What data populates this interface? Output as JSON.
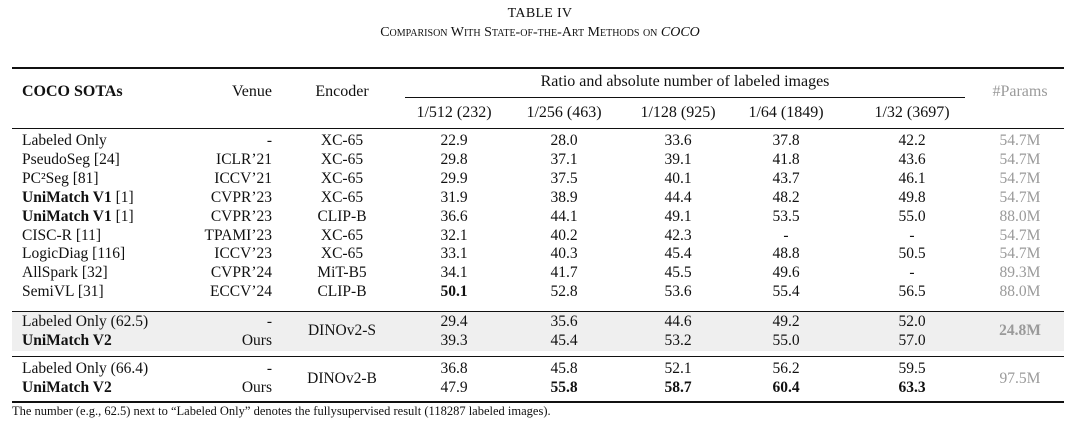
{
  "caption": {
    "title": "TABLE IV",
    "subtitle": "Comparison With State-of-the-Art Methods on",
    "subtitle_dataset": "COCO"
  },
  "header": {
    "method": "COCO SOTAs",
    "venue": "Venue",
    "encoder": "Encoder",
    "group": "Ratio and absolute number of labeled images",
    "params": "#Params",
    "splits": [
      "1/512 (232)",
      "1/256 (463)",
      "1/128 (925)",
      "1/64 (1849)",
      "1/32 (3697)"
    ]
  },
  "section1": [
    {
      "name": "Labeled Only",
      "ref": "",
      "venue": "-",
      "encoder": "XC-65",
      "vals": [
        "22.9",
        "28.0",
        "33.6",
        "37.8",
        "42.2"
      ],
      "params": "54.7M"
    },
    {
      "name": "PseudoSeg",
      "ref": "[24]",
      "venue": "ICLR’21",
      "encoder": "XC-65",
      "vals": [
        "29.8",
        "37.1",
        "39.1",
        "41.8",
        "43.6"
      ],
      "params": "54.7M"
    },
    {
      "name": "PC²Seg",
      "ref": "[81]",
      "venue": "ICCV’21",
      "encoder": "XC-65",
      "vals": [
        "29.9",
        "37.5",
        "40.1",
        "43.7",
        "46.1"
      ],
      "params": "54.7M"
    },
    {
      "name": "UniMatch V1",
      "ref": "[1]",
      "venue": "CVPR’23",
      "encoder": "XC-65",
      "vals": [
        "31.9",
        "38.9",
        "44.4",
        "48.2",
        "49.8"
      ],
      "params": "54.7M"
    },
    {
      "name": "UniMatch V1",
      "ref": "[1]",
      "venue": "CVPR’23",
      "encoder": "CLIP-B",
      "vals": [
        "36.6",
        "44.1",
        "49.1",
        "53.5",
        "55.0"
      ],
      "params": "88.0M"
    },
    {
      "name": "CISC-R",
      "ref": "[11]",
      "venue": "TPAMI’23",
      "encoder": "XC-65",
      "vals": [
        "32.1",
        "40.2",
        "42.3",
        "-",
        "-"
      ],
      "params": "54.7M"
    },
    {
      "name": "LogicDiag",
      "ref": "[116]",
      "venue": "ICCV’23",
      "encoder": "XC-65",
      "vals": [
        "33.1",
        "40.3",
        "45.4",
        "48.8",
        "50.5"
      ],
      "params": "54.7M"
    },
    {
      "name": "AllSpark",
      "ref": "[32]",
      "venue": "CVPR’24",
      "encoder": "MiT-B5",
      "vals": [
        "34.1",
        "41.7",
        "45.5",
        "49.6",
        "-"
      ],
      "params": "89.3M"
    },
    {
      "name": "SemiVL",
      "ref": "[31]",
      "venue": "ECCV’24",
      "encoder": "CLIP-B",
      "vals": [
        "50.1",
        "52.8",
        "53.6",
        "55.4",
        "56.5"
      ],
      "params": "88.0M"
    }
  ],
  "section2": {
    "encoder": "DINOv2-S",
    "params": "24.8M",
    "rows": [
      {
        "name": "Labeled Only (62.5)",
        "venue": "-",
        "vals": [
          "29.4",
          "35.6",
          "44.6",
          "49.2",
          "52.0"
        ]
      },
      {
        "name": "UniMatch V2",
        "venue": "Ours",
        "vals": [
          "39.3",
          "45.4",
          "53.2",
          "55.0",
          "57.0"
        ]
      }
    ]
  },
  "section3": {
    "encoder": "DINOv2-B",
    "params": "97.5M",
    "rows": [
      {
        "name": "Labeled Only (66.4)",
        "venue": "-",
        "vals": [
          "36.8",
          "45.8",
          "52.1",
          "56.2",
          "59.5"
        ]
      },
      {
        "name": "UniMatch V2",
        "venue": "Ours",
        "vals": [
          "47.9",
          "55.8",
          "58.7",
          "60.4",
          "63.3"
        ]
      }
    ]
  },
  "footnote": "The number (e.g., 62.5) next to “Labeled Only” denotes the fullysupervised result (118287 labeled images)."
}
